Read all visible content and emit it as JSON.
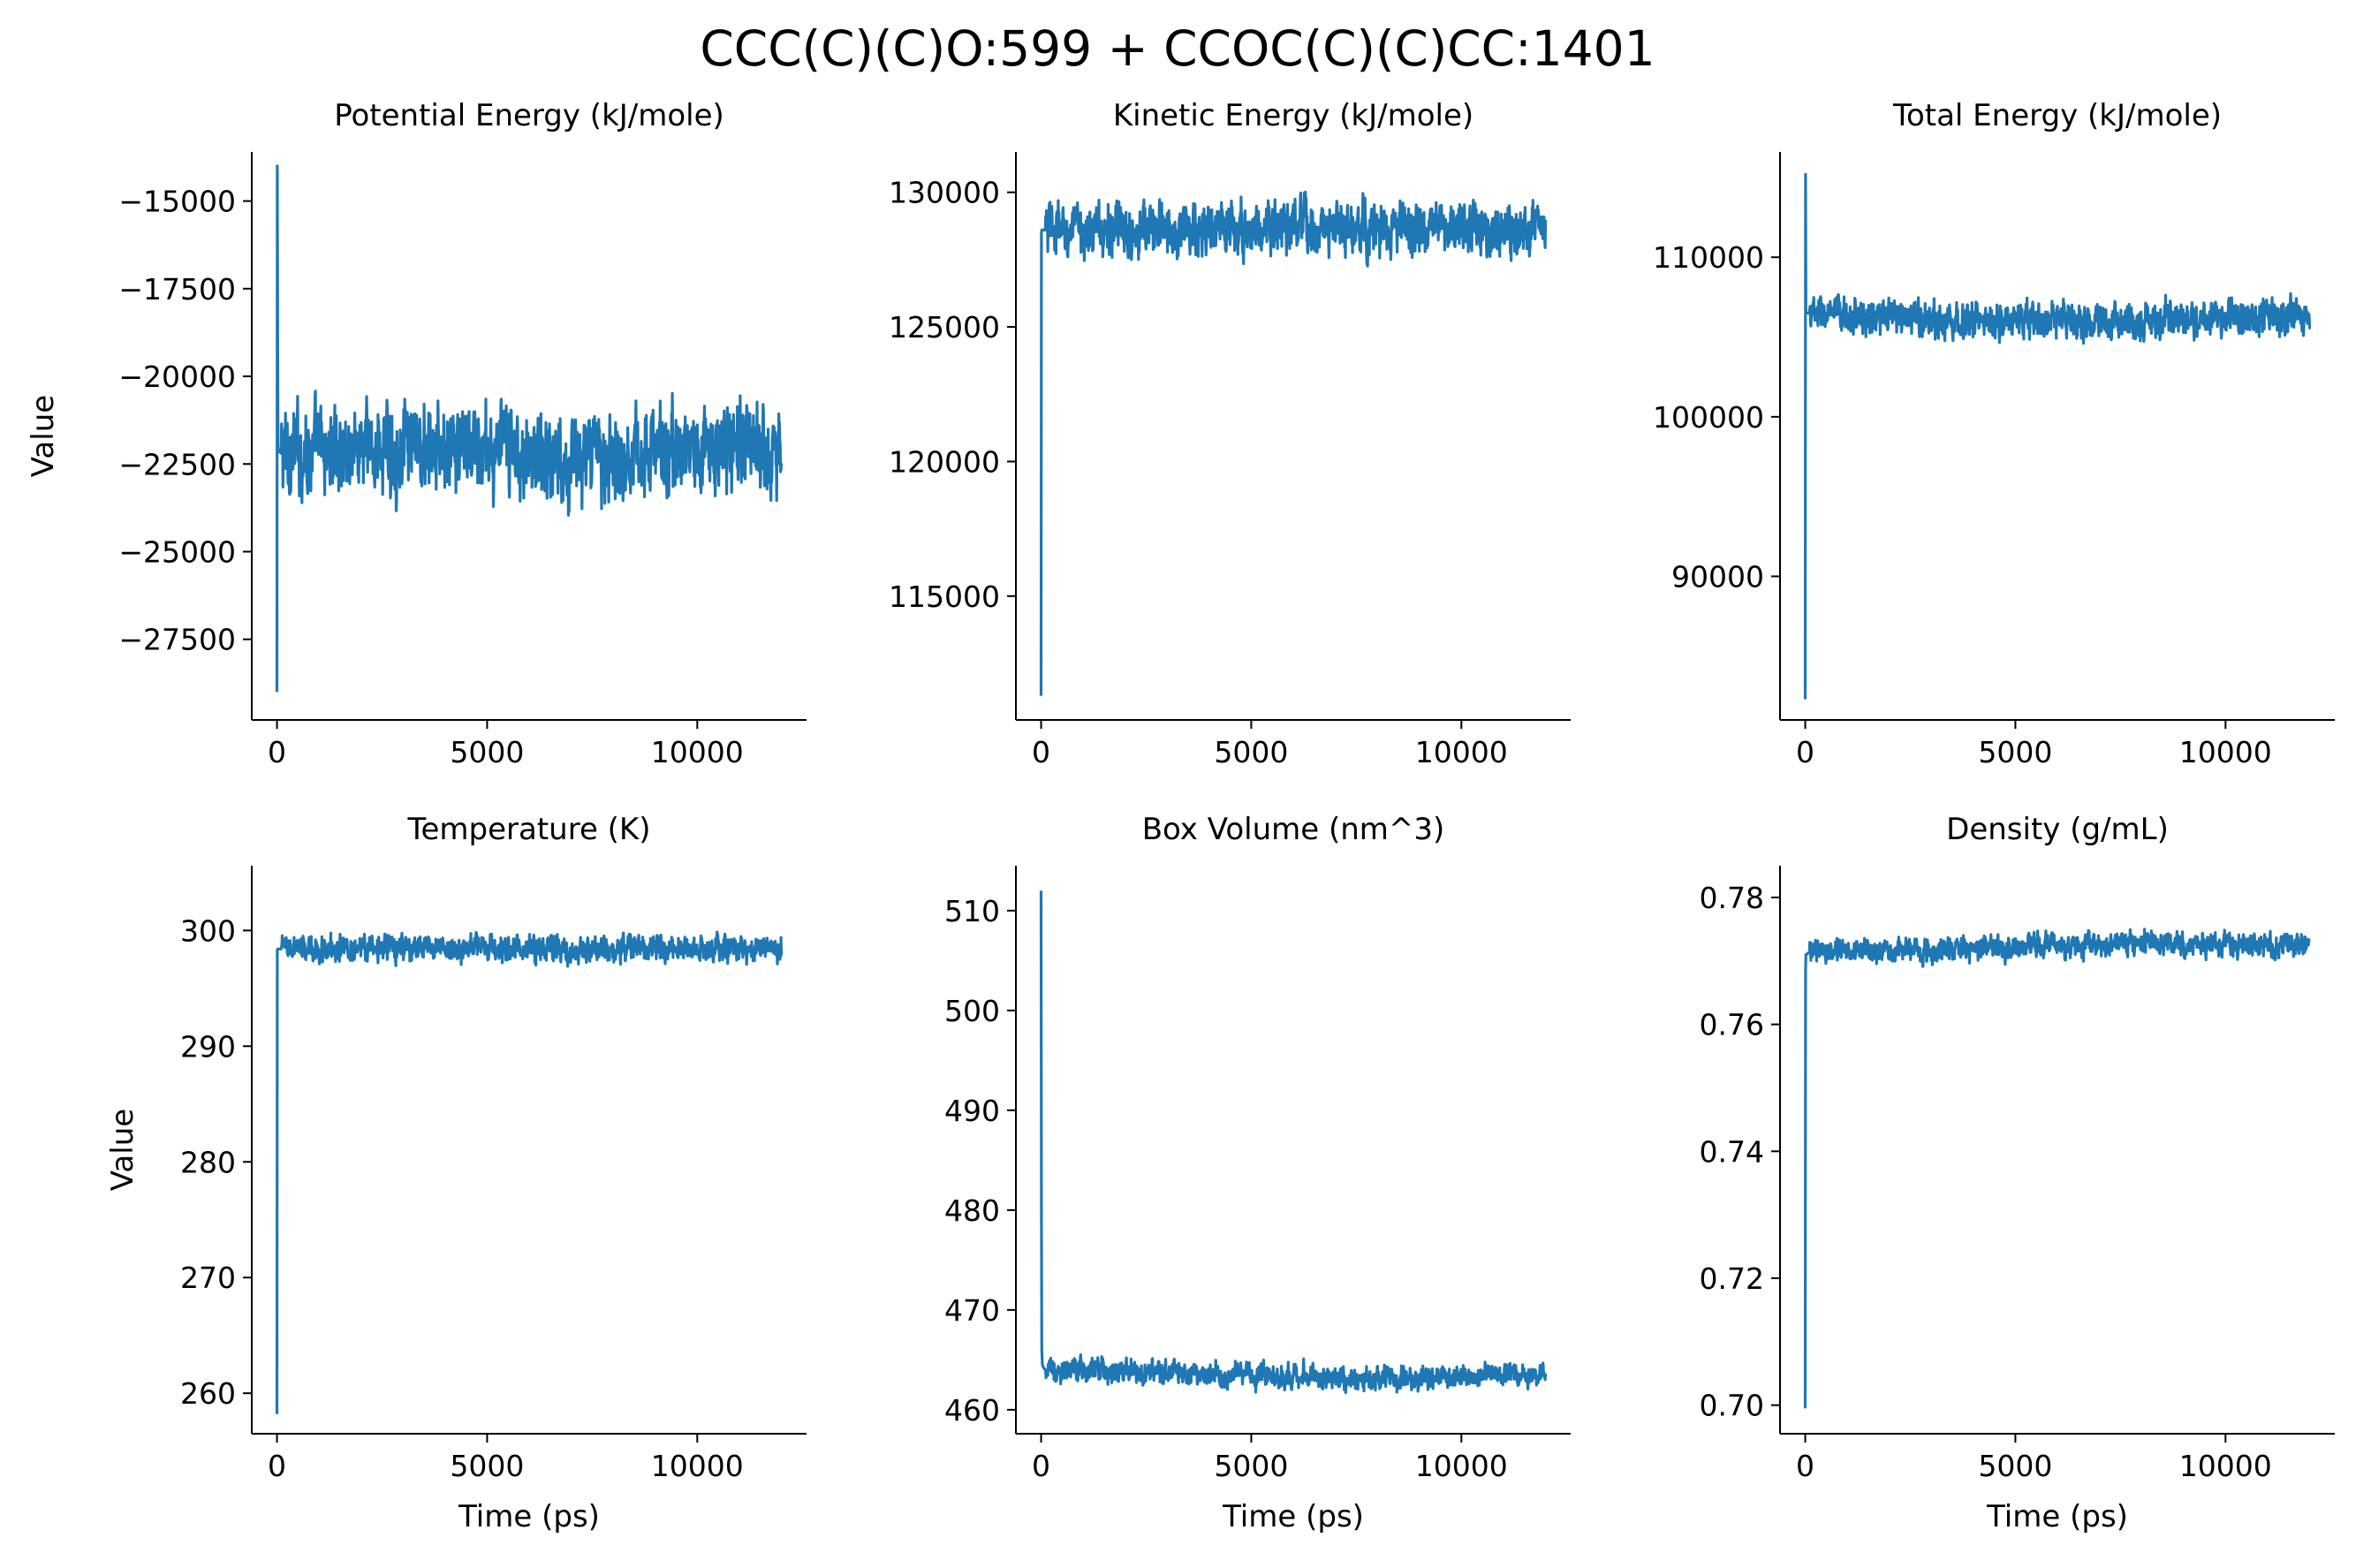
{
  "figure": {
    "suptitle": "CCC(C)(C)O:599 + CCOC(C)(C)CC:1401",
    "line_color": "#1f77b4"
  },
  "chart_data": [
    {
      "type": "line",
      "title": "Potential Energy (kJ/mole)",
      "xlabel": "",
      "ylabel": "Value",
      "xlim": [
        -600,
        12600
      ],
      "ylim": [
        -29800,
        -13600
      ],
      "xticks": [
        0,
        5000,
        10000
      ],
      "xtick_labels": [
        "0",
        "5000",
        "10000"
      ],
      "yticks": [
        -15000,
        -17500,
        -20000,
        -22500,
        -25000,
        -27500
      ],
      "ytick_labels": [
        "−15000",
        "−17500",
        "−20000",
        "−22500",
        "−25000",
        "−27500"
      ],
      "grid": false,
      "series": [
        {
          "x": [
            0,
            8,
            16,
            24,
            40,
            60,
            100,
            200,
            500,
            1000,
            2000,
            3000,
            4000,
            5000,
            6000,
            7000,
            8000,
            9000,
            10000,
            11000,
            12000
          ],
          "y": [
            -29000,
            -14000,
            -18500,
            -22000,
            -22100,
            -22150,
            -22200,
            -22200,
            -22100,
            -22100,
            -22050,
            -22100,
            -22150,
            -22100,
            -22200,
            -22350,
            -22200,
            -22150,
            -22050,
            -22000,
            -22100
          ],
          "band": [
            2000,
            2000,
            2000,
            2000,
            2000,
            2000,
            2000,
            2000,
            2000,
            2000,
            2000,
            2000,
            2000,
            2000,
            2000,
            2000,
            2000,
            2000,
            2000,
            2000,
            2000
          ]
        }
      ]
    },
    {
      "type": "line",
      "title": "Kinetic Energy (kJ/mole)",
      "xlabel": "",
      "ylabel": "",
      "xlim": [
        -600,
        12600
      ],
      "ylim": [
        110400,
        131500
      ],
      "xticks": [
        0,
        5000,
        10000
      ],
      "xtick_labels": [
        "0",
        "5000",
        "10000"
      ],
      "yticks": [
        115000,
        120000,
        125000,
        130000
      ],
      "ytick_labels": [
        "115000",
        "120000",
        "125000",
        "130000"
      ],
      "grid": false,
      "series": [
        {
          "x": [
            0,
            8,
            16,
            30,
            60,
            100,
            200,
            500,
            1000,
            2000,
            3000,
            4000,
            5000,
            6000,
            7000,
            8000,
            9000,
            10000,
            11000,
            12000
          ],
          "y": [
            111300,
            128500,
            128600,
            128600,
            128600,
            128600,
            128600,
            128600,
            128600,
            128650,
            128650,
            128600,
            128650,
            128650,
            128600,
            128600,
            128600,
            128650,
            128650,
            128650
          ],
          "band": [
            1600,
            1600,
            1600,
            1600,
            1600,
            1600,
            1600,
            1600,
            1600,
            1600,
            1600,
            1600,
            1600,
            1600,
            1600,
            1600,
            1600,
            1600,
            1600,
            1600
          ]
        }
      ]
    },
    {
      "type": "line",
      "title": "Total Energy (kJ/mole)",
      "xlabel": "",
      "ylabel": "",
      "xlim": [
        -600,
        12600
      ],
      "ylim": [
        81000,
        116600
      ],
      "xticks": [
        0,
        5000,
        10000
      ],
      "xtick_labels": [
        "0",
        "5000",
        "10000"
      ],
      "yticks": [
        90000,
        100000,
        110000
      ],
      "ytick_labels": [
        "90000",
        "100000",
        "110000"
      ],
      "grid": false,
      "series": [
        {
          "x": [
            0,
            8,
            16,
            30,
            60,
            100,
            200,
            500,
            1000,
            2000,
            3000,
            4000,
            5000,
            6000,
            7000,
            8000,
            9000,
            10000,
            11000,
            12000
          ],
          "y": [
            82300,
            115200,
            106500,
            106500,
            106500,
            106500,
            106500,
            106400,
            106300,
            106200,
            106100,
            106000,
            106100,
            106000,
            105900,
            106000,
            106100,
            106200,
            106200,
            106400
          ],
          "band": [
            1800,
            1800,
            1800,
            1800,
            1800,
            1800,
            1800,
            1800,
            1800,
            1800,
            1800,
            1800,
            1800,
            1800,
            1800,
            1800,
            1800,
            1800,
            1800,
            1800
          ]
        }
      ]
    },
    {
      "type": "line",
      "title": "Temperature (K)",
      "xlabel": "Time (ps)",
      "ylabel": "Value",
      "xlim": [
        -600,
        12600
      ],
      "ylim": [
        256500,
        305600
      ],
      "value_scale": 0.001,
      "xticks": [
        0,
        5000,
        10000
      ],
      "xtick_labels": [
        "0",
        "5000",
        "10000"
      ],
      "yticks": [
        260000,
        270000,
        280000,
        290000,
        300000
      ],
      "ytick_labels": [
        "260",
        "270",
        "280",
        "290",
        "300"
      ],
      "grid": false,
      "series": [
        {
          "x": [
            0,
            8,
            16,
            30,
            60,
            100,
            200,
            500,
            1000,
            2000,
            3000,
            4000,
            5000,
            6000,
            7000,
            8000,
            9000,
            10000,
            11000,
            12000
          ],
          "y": [
            258200,
            298300,
            298400,
            298400,
            298400,
            298400,
            298400,
            298400,
            298400,
            298500,
            298500,
            298400,
            298500,
            298500,
            298400,
            298400,
            298400,
            298500,
            298500,
            298500
          ],
          "band": [
            1800,
            1800,
            1800,
            1800,
            1800,
            1800,
            1800,
            1800,
            1800,
            1800,
            1800,
            1800,
            1800,
            1800,
            1800,
            1800,
            1800,
            1800,
            1800,
            1800
          ]
        }
      ]
    },
    {
      "type": "line",
      "title": "Box Volume (nm^3)",
      "xlabel": "Time (ps)",
      "ylabel": "",
      "xlim": [
        -600,
        12600
      ],
      "ylim": [
        457600,
        514500
      ],
      "value_scale": 0.001,
      "xticks": [
        0,
        5000,
        10000
      ],
      "xtick_labels": [
        "0",
        "5000",
        "10000"
      ],
      "yticks": [
        460000,
        470000,
        480000,
        490000,
        500000,
        510000
      ],
      "ytick_labels": [
        "460",
        "470",
        "480",
        "490",
        "500",
        "510"
      ],
      "grid": false,
      "series": [
        {
          "x": [
            0,
            8,
            16,
            30,
            60,
            100,
            200,
            500,
            1000,
            2000,
            3000,
            4000,
            5000,
            6000,
            7000,
            8000,
            9000,
            10000,
            11000,
            12000
          ],
          "y": [
            512000,
            480000,
            466000,
            464500,
            464200,
            464000,
            464000,
            464000,
            464000,
            463900,
            463800,
            463600,
            463500,
            463400,
            463300,
            463200,
            463200,
            463400,
            463500,
            463400
          ],
          "band": [
            1900,
            1900,
            1900,
            1900,
            1900,
            1900,
            1900,
            1900,
            1900,
            1900,
            1900,
            1900,
            1900,
            1900,
            1900,
            1900,
            1900,
            1900,
            1900,
            1900
          ]
        }
      ]
    },
    {
      "type": "line",
      "title": "Density (g/mL)",
      "xlabel": "Time (ps)",
      "ylabel": "",
      "xlim": [
        -600,
        12600
      ],
      "ylim": [
        695500,
        785000
      ],
      "value_scale": 1e-06,
      "xticks": [
        0,
        5000,
        10000
      ],
      "xtick_labels": [
        "0",
        "5000",
        "10000"
      ],
      "yticks": [
        700000,
        720000,
        740000,
        760000,
        780000
      ],
      "ytick_labels": [
        "0.70",
        "0.72",
        "0.74",
        "0.76",
        "0.78"
      ],
      "grid": false,
      "series": [
        {
          "x": [
            0,
            8,
            16,
            30,
            60,
            100,
            200,
            500,
            1000,
            2000,
            3000,
            4000,
            5000,
            6000,
            7000,
            8000,
            9000,
            10000,
            11000,
            12000
          ],
          "y": [
            699500,
            768000,
            771000,
            771000,
            771200,
            771300,
            771300,
            771300,
            771400,
            771600,
            771800,
            772100,
            772300,
            772500,
            772600,
            772800,
            772700,
            772500,
            772400,
            772600
          ],
          "band": [
            3000,
            3000,
            3000,
            3000,
            3000,
            3000,
            3000,
            3000,
            3000,
            3000,
            3000,
            3000,
            3000,
            3000,
            3000,
            3000,
            3000,
            3000,
            3000,
            3000
          ]
        }
      ]
    }
  ]
}
